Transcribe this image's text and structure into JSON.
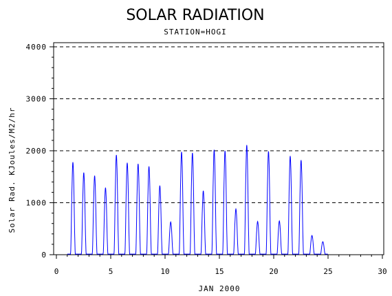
{
  "chart_data": {
    "type": "line",
    "title": "SOLAR RADIATION",
    "subtitle": "STATION=HOGI",
    "xlabel": "JAN 2000",
    "ylabel": "Solar Rad. KJoules/M2/hr",
    "xlim": [
      0,
      30
    ],
    "ylim": [
      0,
      4000
    ],
    "x_ticks": [
      0,
      5,
      10,
      15,
      20,
      25,
      30
    ],
    "y_ticks": [
      0,
      1000,
      2000,
      3000,
      4000
    ],
    "y_gridlines": [
      1000,
      2000,
      3000,
      4000
    ],
    "grid_style": "dashed",
    "color": "#0000ff",
    "daily_peaks": [
      {
        "day": 1,
        "value": 1780
      },
      {
        "day": 2,
        "value": 1580
      },
      {
        "day": 3,
        "value": 1520
      },
      {
        "day": 4,
        "value": 1290
      },
      {
        "day": 5,
        "value": 1920
      },
      {
        "day": 6,
        "value": 1770
      },
      {
        "day": 7,
        "value": 1750
      },
      {
        "day": 8,
        "value": 1700
      },
      {
        "day": 9,
        "value": 1330
      },
      {
        "day": 10,
        "value": 630
      },
      {
        "day": 11,
        "value": 1980
      },
      {
        "day": 12,
        "value": 1960
      },
      {
        "day": 13,
        "value": 1230
      },
      {
        "day": 14,
        "value": 2020
      },
      {
        "day": 15,
        "value": 2000
      },
      {
        "day": 16,
        "value": 880
      },
      {
        "day": 17,
        "value": 2110
      },
      {
        "day": 18,
        "value": 640
      },
      {
        "day": 19,
        "value": 1990
      },
      {
        "day": 20,
        "value": 650
      },
      {
        "day": 21,
        "value": 1900
      },
      {
        "day": 22,
        "value": 1820
      },
      {
        "day": 23,
        "value": 370
      },
      {
        "day": 24,
        "value": 250
      }
    ]
  }
}
